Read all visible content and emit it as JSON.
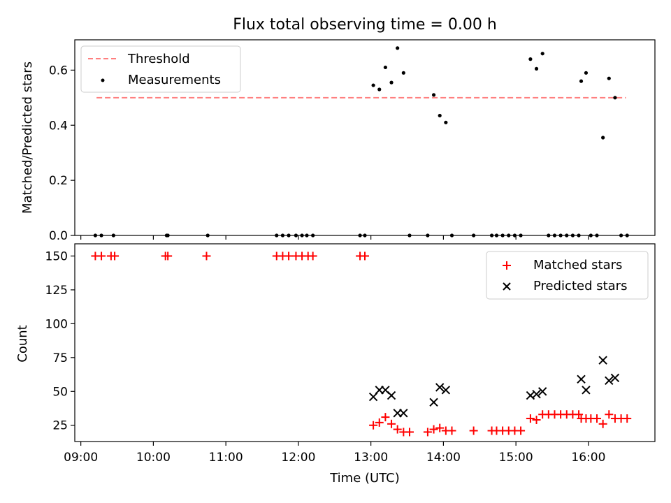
{
  "chart_data": [
    {
      "type": "scatter",
      "title": "Flux total observing time = 0.00 h",
      "xlabel": "",
      "ylabel": "Matched/Predicted stars",
      "xlim": [
        "08:55",
        "16:55"
      ],
      "ylim": [
        0,
        0.71
      ],
      "yticks": [
        0.0,
        0.2,
        0.4,
        0.6
      ],
      "yticklabels": [
        "0.0",
        "0.2",
        "0.4",
        "0.6"
      ],
      "xticks": [
        "09:00",
        "10:00",
        "11:00",
        "12:00",
        "13:00",
        "14:00",
        "15:00",
        "16:00"
      ],
      "grid": false,
      "legend_position": "upper-left",
      "series": [
        {
          "name": "Threshold",
          "kind": "dashed-line",
          "color": "#ff7f7f",
          "x": [
            "09:13",
            "16:31"
          ],
          "y": [
            0.5,
            0.5
          ]
        },
        {
          "name": "Measurements",
          "kind": "dots",
          "color": "#000000",
          "points": [
            [
              "09:12",
              0.0
            ],
            [
              "09:17",
              0.0
            ],
            [
              "09:27",
              0.0
            ],
            [
              "10:11",
              0.0
            ],
            [
              "10:12",
              0.0
            ],
            [
              "10:45",
              0.0
            ],
            [
              "11:42",
              0.0
            ],
            [
              "11:47",
              0.0
            ],
            [
              "11:52",
              0.0
            ],
            [
              "11:58",
              0.0
            ],
            [
              "12:03",
              0.0
            ],
            [
              "12:07",
              0.0
            ],
            [
              "12:12",
              0.0
            ],
            [
              "12:51",
              0.0
            ],
            [
              "12:55",
              0.0
            ],
            [
              "13:02",
              0.545
            ],
            [
              "13:07",
              0.53
            ],
            [
              "13:12",
              0.61
            ],
            [
              "13:17",
              0.555
            ],
            [
              "13:22",
              0.68
            ],
            [
              "13:27",
              0.59
            ],
            [
              "13:32",
              0.0
            ],
            [
              "13:47",
              0.0
            ],
            [
              "13:52",
              0.51
            ],
            [
              "13:57",
              0.435
            ],
            [
              "14:02",
              0.41
            ],
            [
              "14:07",
              0.0
            ],
            [
              "14:25",
              0.0
            ],
            [
              "14:40",
              0.0
            ],
            [
              "14:44",
              0.0
            ],
            [
              "14:49",
              0.0
            ],
            [
              "14:54",
              0.0
            ],
            [
              "14:59",
              0.0
            ],
            [
              "15:04",
              0.0
            ],
            [
              "15:12",
              0.64
            ],
            [
              "15:17",
              0.605
            ],
            [
              "15:22",
              0.66
            ],
            [
              "15:27",
              0.0
            ],
            [
              "15:32",
              0.0
            ],
            [
              "15:37",
              0.0
            ],
            [
              "15:42",
              0.0
            ],
            [
              "15:47",
              0.0
            ],
            [
              "15:52",
              0.0
            ],
            [
              "15:54",
              0.56
            ],
            [
              "15:58",
              0.59
            ],
            [
              "16:02",
              0.0
            ],
            [
              "16:07",
              0.0
            ],
            [
              "16:12",
              0.355
            ],
            [
              "16:17",
              0.57
            ],
            [
              "16:22",
              0.5
            ],
            [
              "16:27",
              0.0
            ],
            [
              "16:32",
              0.0
            ]
          ]
        }
      ]
    },
    {
      "type": "scatter",
      "title": "",
      "xlabel": "Time (UTC)",
      "ylabel": "Count",
      "xlim": [
        "08:55",
        "16:55"
      ],
      "ylim": [
        13,
        159
      ],
      "yticks": [
        25,
        50,
        75,
        100,
        125,
        150
      ],
      "yticklabels": [
        "25",
        "50",
        "75",
        "100",
        "125",
        "150"
      ],
      "xticks": [
        "09:00",
        "10:00",
        "11:00",
        "12:00",
        "13:00",
        "14:00",
        "15:00",
        "16:00"
      ],
      "xticklabels": [
        "09:00",
        "10:00",
        "11:00",
        "12:00",
        "13:00",
        "14:00",
        "15:00",
        "16:00"
      ],
      "grid": false,
      "legend_position": "upper-right",
      "series": [
        {
          "name": "Matched stars",
          "marker": "plus",
          "color": "#ff0000",
          "points": [
            [
              "09:12",
              150
            ],
            [
              "09:17",
              150
            ],
            [
              "09:25",
              150
            ],
            [
              "09:28",
              150
            ],
            [
              "10:10",
              150
            ],
            [
              "10:12",
              150
            ],
            [
              "10:44",
              150
            ],
            [
              "11:42",
              150
            ],
            [
              "11:47",
              150
            ],
            [
              "11:52",
              150
            ],
            [
              "11:58",
              150
            ],
            [
              "12:03",
              150
            ],
            [
              "12:08",
              150
            ],
            [
              "12:12",
              150
            ],
            [
              "12:51",
              150
            ],
            [
              "12:55",
              150
            ],
            [
              "13:02",
              25
            ],
            [
              "13:07",
              27
            ],
            [
              "13:12",
              31
            ],
            [
              "13:17",
              26
            ],
            [
              "13:22",
              22
            ],
            [
              "13:27",
              20
            ],
            [
              "13:32",
              20
            ],
            [
              "13:47",
              20
            ],
            [
              "13:52",
              22
            ],
            [
              "13:57",
              23
            ],
            [
              "14:02",
              21
            ],
            [
              "14:07",
              21
            ],
            [
              "14:25",
              21
            ],
            [
              "14:40",
              21
            ],
            [
              "14:44",
              21
            ],
            [
              "14:49",
              21
            ],
            [
              "14:54",
              21
            ],
            [
              "14:59",
              21
            ],
            [
              "15:04",
              21
            ],
            [
              "15:12",
              30
            ],
            [
              "15:17",
              29
            ],
            [
              "15:22",
              33
            ],
            [
              "15:27",
              33
            ],
            [
              "15:32",
              33
            ],
            [
              "15:37",
              33
            ],
            [
              "15:42",
              33
            ],
            [
              "15:47",
              33
            ],
            [
              "15:52",
              33
            ],
            [
              "15:54",
              30
            ],
            [
              "15:58",
              30
            ],
            [
              "16:02",
              30
            ],
            [
              "16:07",
              30
            ],
            [
              "16:12",
              26
            ],
            [
              "16:17",
              33
            ],
            [
              "16:22",
              30
            ],
            [
              "16:27",
              30
            ],
            [
              "16:32",
              30
            ]
          ]
        },
        {
          "name": "Predicted stars",
          "marker": "x",
          "color": "#000000",
          "points": [
            [
              "13:02",
              46
            ],
            [
              "13:07",
              51
            ],
            [
              "13:12",
              51
            ],
            [
              "13:17",
              47
            ],
            [
              "13:22",
              34
            ],
            [
              "13:27",
              34
            ],
            [
              "13:52",
              42
            ],
            [
              "13:57",
              53
            ],
            [
              "14:02",
              51
            ],
            [
              "15:12",
              47
            ],
            [
              "15:17",
              48
            ],
            [
              "15:22",
              50
            ],
            [
              "15:54",
              59
            ],
            [
              "15:58",
              51
            ],
            [
              "16:12",
              73
            ],
            [
              "16:17",
              58
            ],
            [
              "16:22",
              60
            ]
          ]
        }
      ]
    }
  ]
}
